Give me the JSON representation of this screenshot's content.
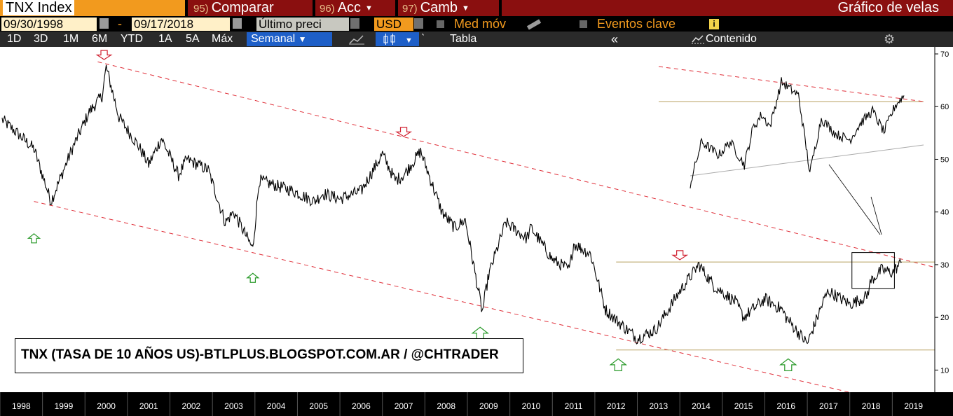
{
  "header": {
    "ticker": "TNX Index",
    "compare_num": "95)",
    "compare_label": "Comparar",
    "acc_num": "96)",
    "acc_label": "Acc",
    "camb_num": "97)",
    "camb_label": "Camb",
    "chart_title": "Gráfico de velas"
  },
  "controls": {
    "date_from": "09/30/1998",
    "date_sep": "-",
    "date_to": "09/17/2018",
    "price_field": "Último preci",
    "currency": "USD",
    "moving_avg_label": "Med móv",
    "key_events_label": "Eventos clave"
  },
  "periods": [
    "1D",
    "3D",
    "1M",
    "6M",
    "YTD",
    "1A",
    "5A",
    "Máx"
  ],
  "toolbar": {
    "frequency": "Semanal",
    "table_label": "Tabla",
    "content_label": "Contenido"
  },
  "annotation": "TNX (TASA DE 10 AÑOS US)-BTLPLUS.BLOGSPOT.COM.AR / @CHTRADER",
  "colors": {
    "brand_bar": "#8a0f0f",
    "accent": "#f29a1e",
    "channel_line": "#e0303a",
    "level_line": "#b8a060",
    "up_arrow": "#2a9a2a",
    "down_arrow": "#d02030"
  },
  "chart_data": {
    "type": "line",
    "style": "candlestick-weekly",
    "x_unit": "year",
    "xlim": [
      1997.5,
      2019.5
    ],
    "ylim": [
      5,
      70
    ],
    "yticks": [
      10,
      20,
      30,
      40,
      50,
      60,
      70
    ],
    "xticks": [
      1998,
      1999,
      2000,
      2001,
      2002,
      2003,
      2004,
      2005,
      2006,
      2007,
      2008,
      2009,
      2010,
      2011,
      2012,
      2013,
      2014,
      2015,
      2016,
      2017,
      2018,
      2019
    ],
    "grid": false,
    "series": [
      {
        "x": [
          1997.55,
          1997.9,
          1998.3,
          1998.7,
          1999.2,
          1999.6,
          1999.9,
          2000.0,
          2000.3,
          2000.8,
          2001.0,
          2001.3,
          2001.7,
          2001.9,
          2002.4,
          2002.8,
          2003.0,
          2003.45,
          2003.6,
          2004.0,
          2004.4,
          2004.9,
          2005.1,
          2005.5,
          2006.0,
          2006.5,
          2006.8,
          2007.0,
          2007.4,
          2007.9,
          2008.2,
          2008.45,
          2008.85,
          2009.0,
          2009.4,
          2009.9,
          2010.0,
          2010.5,
          2010.9,
          2011.0,
          2011.4,
          2011.75,
          2012.0,
          2012.5,
          2012.9,
          2013.0,
          2013.5,
          2013.95,
          2014.3,
          2014.8,
          2015.0,
          2015.5,
          2015.9,
          2016.0,
          2016.5,
          2016.9,
          2017.0,
          2017.5,
          2017.9,
          2018.0,
          2018.25,
          2018.5,
          2018.72
        ],
        "y": [
          57.5,
          55.0,
          52.0,
          42.0,
          52.0,
          59.0,
          62.0,
          67.5,
          58.0,
          52.0,
          49.0,
          54.0,
          47.0,
          50.0,
          48.0,
          38.0,
          40.0,
          33.0,
          46.0,
          45.0,
          44.0,
          42.0,
          43.5,
          42.5,
          44.0,
          51.0,
          46.0,
          47.0,
          51.5,
          40.0,
          37.0,
          38.5,
          21.0,
          28.0,
          38.0,
          35.0,
          37.0,
          31.0,
          29.0,
          34.0,
          32.0,
          21.5,
          19.5,
          16.0,
          17.5,
          18.5,
          25.0,
          30.0,
          26.0,
          23.0,
          20.0,
          23.5,
          21.5,
          20.0,
          15.0,
          23.5,
          25.0,
          22.5,
          24.0,
          27.0,
          29.0,
          28.5,
          30.5
        ]
      }
    ],
    "lines": [
      {
        "style": "dashed",
        "color": "#e0303a",
        "x": [
          1999.8,
          2019.5
        ],
        "y": [
          68.5,
          29.5
        ]
      },
      {
        "style": "dashed",
        "color": "#e0303a",
        "x": [
          1998.3,
          2017.9
        ],
        "y": [
          42.0,
          5.0
        ]
      },
      {
        "style": "solid",
        "color": "#b8a060",
        "x": [
          2012.0,
          2019.5
        ],
        "y": [
          30.5,
          30.5
        ]
      },
      {
        "style": "solid",
        "color": "#b8a060",
        "x": [
          2012.0,
          2019.5
        ],
        "y": [
          13.8,
          13.8
        ]
      }
    ],
    "signals": [
      {
        "type": "up",
        "x": 1998.3,
        "y": 35.0
      },
      {
        "type": "up",
        "x": 2003.45,
        "y": 27.5
      },
      {
        "type": "up",
        "x": 2008.8,
        "y": 17.0
      },
      {
        "type": "up",
        "x": 2012.05,
        "y": 11.0
      },
      {
        "type": "up",
        "x": 2016.05,
        "y": 11.0
      },
      {
        "type": "down",
        "x": 1999.95,
        "y": 69.8
      },
      {
        "type": "down",
        "x": 2007.0,
        "y": 55.2
      },
      {
        "type": "down",
        "x": 2013.5,
        "y": 31.8
      }
    ],
    "zoom_box": {
      "x": [
        2017.55,
        2018.55
      ],
      "y": [
        25.5,
        32.3
      ]
    },
    "inset": {
      "x": [
        2015.0,
        2018.75
      ],
      "y": [
        35.0,
        61.5
      ],
      "series_x": [
        2015.0,
        2015.2,
        2015.5,
        2015.7,
        2015.95,
        2016.1,
        2016.25,
        2016.4,
        2016.6,
        2016.9,
        2017.1,
        2017.3,
        2017.55,
        2017.8,
        2018.0,
        2018.2,
        2018.4,
        2018.6,
        2018.75
      ],
      "series_y": [
        35.0,
        46.0,
        42.5,
        46.0,
        40.0,
        49.5,
        53.0,
        50.0,
        61.5,
        58.0,
        38.0,
        52.0,
        48.0,
        46.5,
        51.0,
        54.0,
        48.5,
        55.5,
        58.0
      ]
    }
  }
}
